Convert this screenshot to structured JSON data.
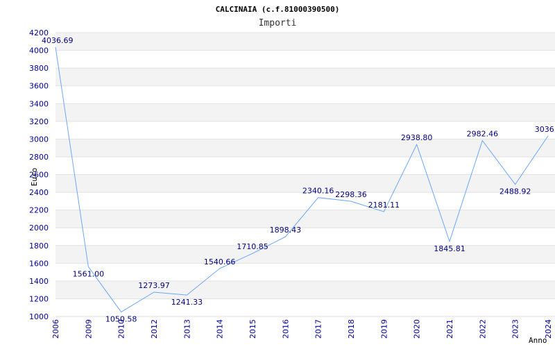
{
  "chart_data": {
    "type": "line",
    "title": "CALCINAIA (c.f.81000390500)",
    "subtitle": "Importi",
    "ylabel": "Euro",
    "xlabel": "Anno",
    "ylim": [
      1000,
      4200
    ],
    "ytick_step": 200,
    "grid": true,
    "line_color": "#6aa6ff",
    "categories": [
      "2006",
      "2009",
      "2010",
      "2012",
      "2013",
      "2014",
      "2015",
      "2016",
      "2017",
      "2018",
      "2019",
      "2020",
      "2021",
      "2022",
      "2023",
      "2024"
    ],
    "values": [
      4036.69,
      1561.0,
      1050.58,
      1273.97,
      1241.33,
      1540.66,
      1710.85,
      1898.43,
      2340.16,
      2298.36,
      2181.11,
      2938.8,
      1845.81,
      2982.46,
      2488.92,
      3036.0
    ],
    "value_labels": [
      "4036.69",
      "1561.00",
      "1050.58",
      "1273.97",
      "1241.33",
      "1540.66",
      "1710.85",
      "1898.43",
      "2340.16",
      "2298.36",
      "2181.11",
      "2938.80",
      "1845.81",
      "2982.46",
      "2488.92",
      "3036.0"
    ]
  }
}
